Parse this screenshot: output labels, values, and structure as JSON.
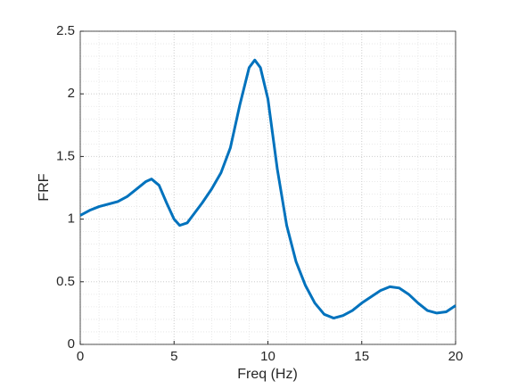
{
  "chart_data": {
    "type": "line",
    "xlabel": "Freq (Hz)",
    "ylabel": "FRF",
    "x": [
      0,
      0.5,
      1,
      2,
      2.5,
      3,
      3.5,
      3.8,
      4.2,
      4.6,
      5,
      5.3,
      5.7,
      6,
      6.5,
      7,
      7.5,
      8,
      8.5,
      9,
      9.3,
      9.6,
      10,
      10.5,
      11,
      11.5,
      12,
      12.5,
      13,
      13.5,
      14,
      14.5,
      15,
      15.5,
      16,
      16.5,
      17,
      17.5,
      18,
      18.5,
      19,
      19.5,
      20
    ],
    "series": [
      {
        "color": "#0072bd",
        "values": [
          1.03,
          1.07,
          1.1,
          1.14,
          1.18,
          1.24,
          1.3,
          1.32,
          1.27,
          1.13,
          1.0,
          0.95,
          0.97,
          1.03,
          1.13,
          1.24,
          1.37,
          1.57,
          1.91,
          2.21,
          2.27,
          2.21,
          1.96,
          1.4,
          0.95,
          0.66,
          0.47,
          0.33,
          0.24,
          0.21,
          0.23,
          0.27,
          0.33,
          0.38,
          0.43,
          0.46,
          0.45,
          0.4,
          0.33,
          0.27,
          0.25,
          0.26,
          0.31
        ]
      }
    ],
    "xlim": [
      0,
      20
    ],
    "xticks": [
      0,
      5,
      10,
      15,
      20
    ],
    "ylim": [
      0,
      2.5
    ],
    "yticks": [
      0,
      0.5,
      1,
      1.5,
      2,
      2.5
    ],
    "grid": true,
    "minor_grid": true
  }
}
